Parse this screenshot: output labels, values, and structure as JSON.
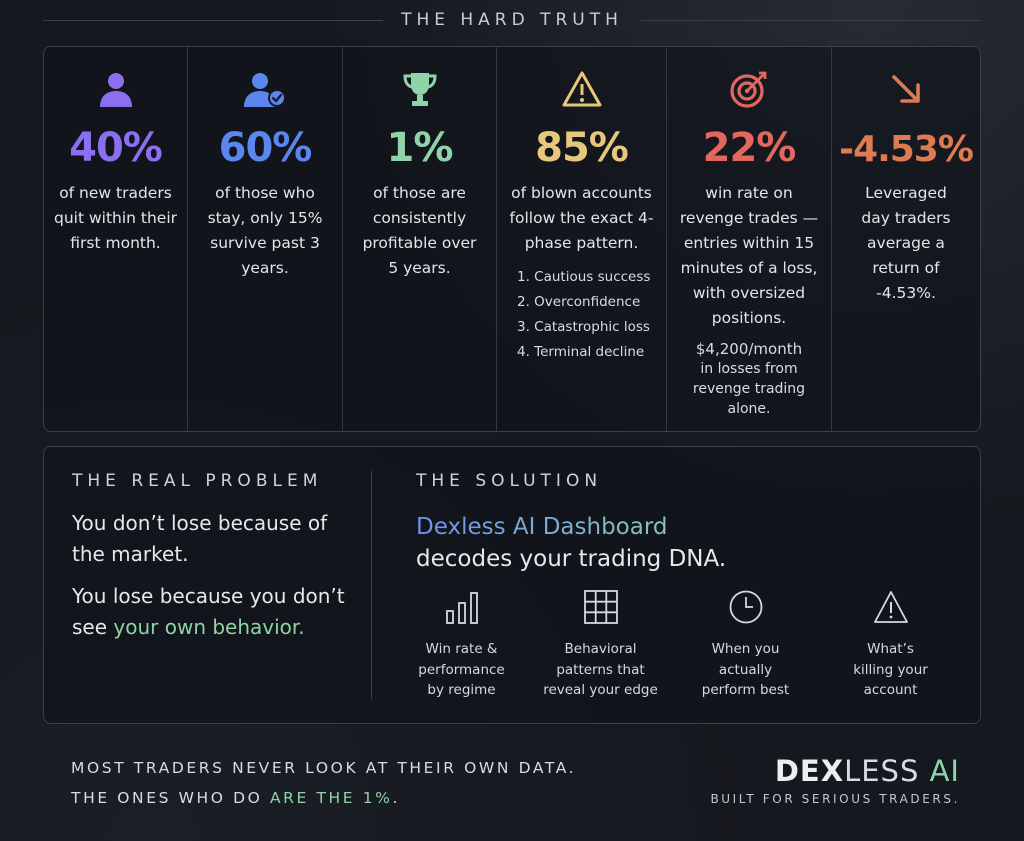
{
  "header": {
    "title": "THE HARD TRUTH"
  },
  "colors": {
    "purple": "#8c6ff0",
    "blue": "#5a86ee",
    "green": "#8fd4a8",
    "yellow": "#e7c77c",
    "red": "#e2675f",
    "orange": "#e07a52",
    "highlight_green": "#8fd4a8"
  },
  "stats": [
    {
      "icon": "user-icon",
      "value": "40%",
      "desc": "of new traders quit within their first month."
    },
    {
      "icon": "user-check-icon",
      "value": "60%",
      "desc": "of those who stay, only 15% survive past 3 years."
    },
    {
      "icon": "trophy-icon",
      "value": "1%",
      "desc": "of those are consistently profitable over 5 years."
    },
    {
      "icon": "warning-icon",
      "value": "85%",
      "desc": "of blown accounts follow the exact 4-phase pattern.",
      "phases": [
        "1. Cautious success",
        "2. Overconfidence",
        "3. Catastrophic loss",
        "4. Terminal decline"
      ]
    },
    {
      "icon": "target-icon",
      "value": "22%",
      "desc": "win rate on revenge trades — entries within 15 minutes of a loss, with oversized positions.",
      "note_amount": "$4,200/month",
      "note_rest": "in losses from revenge trading alone."
    },
    {
      "icon": "arrow-down-right-icon",
      "value": "-4.53%",
      "desc": "Leveraged day traders average a return of -4.53%."
    }
  ],
  "problem": {
    "heading": "THE REAL PROBLEM",
    "line1": "You don’t lose because of the market.",
    "line2_prefix": "You lose because you don’t see ",
    "line2_highlight": "your own behavior."
  },
  "solution": {
    "heading": "THE SOLUTION",
    "product": "Dexless AI Dashboard",
    "tagline": "decodes your trading DNA.",
    "features": [
      {
        "icon": "bar-chart-icon",
        "label": "Win rate & performance by regime"
      },
      {
        "icon": "grid-icon",
        "label": "Behavioral patterns that reveal your edge"
      },
      {
        "icon": "clock-icon",
        "label": "When you actually perform best"
      },
      {
        "icon": "warning-icon",
        "label": "What’s killing your account"
      }
    ]
  },
  "footer": {
    "line1": "MOST TRADERS NEVER LOOK AT THEIR OWN DATA.",
    "line2_prefix": "THE ONES WHO DO ",
    "line2_highlight": "ARE THE 1%",
    "line2_suffix": "."
  },
  "brand": {
    "dex": "DEX",
    "less": "LESS",
    "ai": "AI",
    "tagline": "BUILT FOR SERIOUS TRADERS."
  }
}
